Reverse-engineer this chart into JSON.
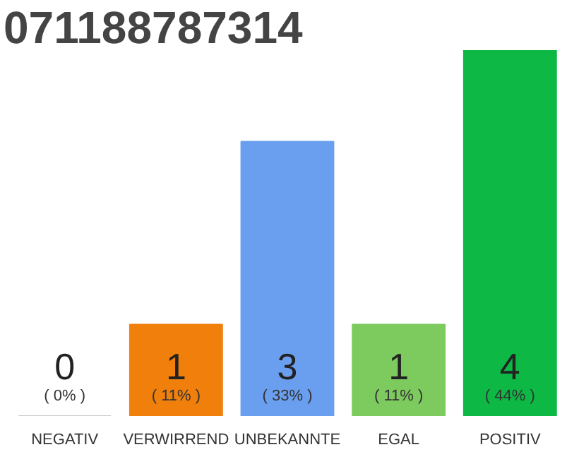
{
  "chart_data": {
    "type": "bar",
    "title": "071188787314",
    "categories": [
      "NEGATIV",
      "VERWIRREND",
      "UNBEKANNTE",
      "EGAL",
      "POSITIV"
    ],
    "values": [
      0,
      1,
      3,
      1,
      4
    ],
    "colors": [
      "#cccccc",
      "#f07f0c",
      "#6a9fef",
      "#7dcb5e",
      "#0db845"
    ],
    "value_labels": [
      "0",
      "1",
      "3",
      "1",
      "4"
    ],
    "annotations": [
      "( 0% )",
      "( 11% )",
      "( 33% )",
      "( 11% )",
      "( 44% )"
    ],
    "grid": false
  }
}
